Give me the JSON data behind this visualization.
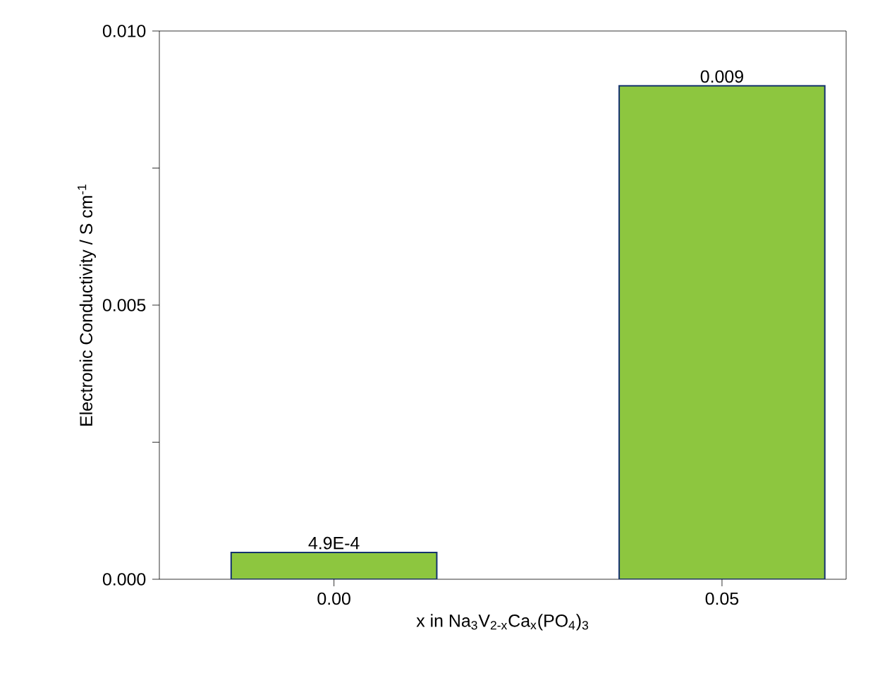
{
  "chart_data": {
    "type": "bar",
    "xlabel": "x in Na$_{3}$V$_{2-x}$Ca$_{x}$(PO$_{4}$)$_{3}$",
    "ylabel": "Electronic Conductivity / S cm$^{-1}$",
    "categories": [
      "0.00",
      "0.05"
    ],
    "values": [
      0.00049,
      0.009
    ],
    "value_labels": [
      "4.9E-4",
      "0.009"
    ],
    "color": "#8dc63f",
    "ylim": [
      0,
      0.01
    ],
    "yticks": [
      {
        "value": 0,
        "label": "0.000"
      },
      {
        "value": 0.0025,
        "label": null
      },
      {
        "value": 0.005,
        "label": "0.005"
      },
      {
        "value": 0.0075,
        "label": null
      },
      {
        "value": 0.01,
        "label": "0.010"
      }
    ],
    "grid": false
  }
}
